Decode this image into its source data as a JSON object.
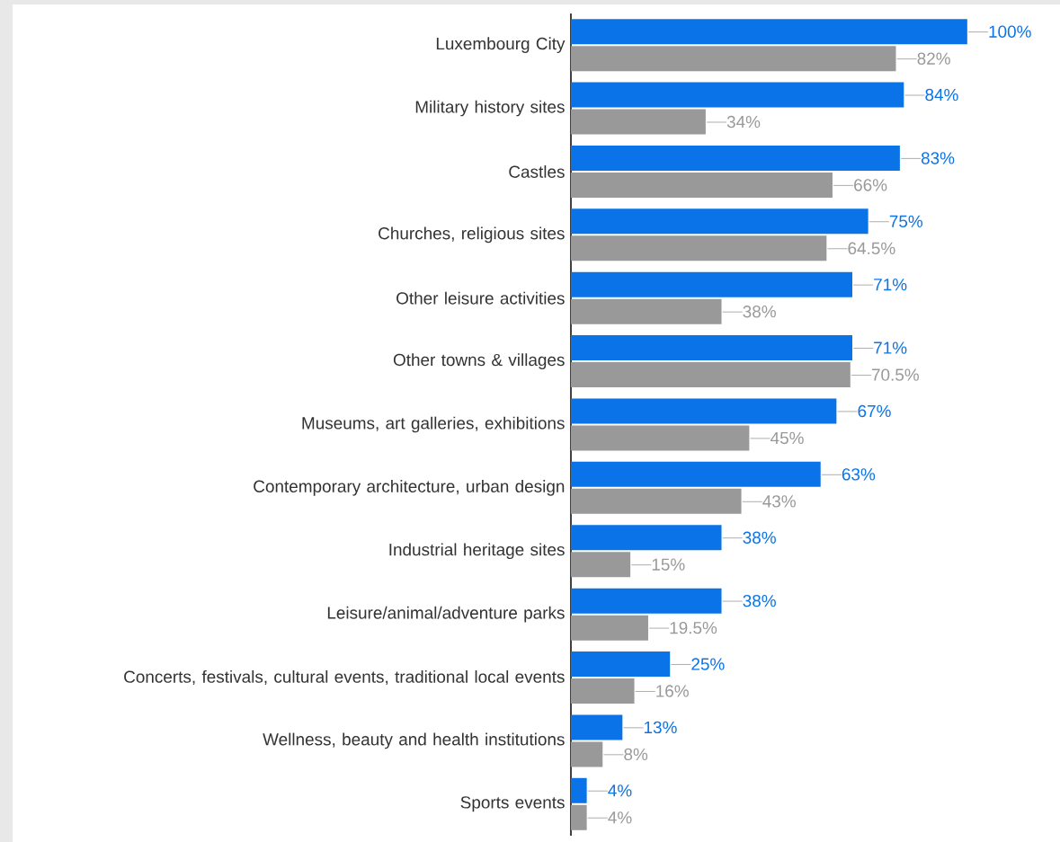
{
  "chart_data": {
    "type": "bar",
    "orientation": "horizontal",
    "categories": [
      "Luxembourg City",
      "Military history sites",
      "Castles",
      "Churches, religious sites",
      "Other leisure activities",
      "Other towns & villages",
      "Museums, art galleries, exhibitions",
      "Contemporary architecture, urban design",
      "Industrial heritage sites",
      "Leisure/animal/adventure parks",
      "Concerts, festivals, cultural events, traditional local events",
      "Wellness, beauty and health institutions",
      "Sports events"
    ],
    "series": [
      {
        "color": "#0a73e8",
        "values": [
          100,
          84,
          83,
          75,
          71,
          71,
          67,
          63,
          38,
          38,
          25,
          13,
          4
        ],
        "value_labels": [
          "100%",
          "84%",
          "83%",
          "75%",
          "71%",
          "71%",
          "67%",
          "63%",
          "38%",
          "38%",
          "25%",
          "13%",
          "4%"
        ]
      },
      {
        "color": "#999999",
        "values": [
          82,
          34,
          66,
          64.5,
          38,
          70.5,
          45,
          43,
          15,
          19.5,
          16,
          8,
          4
        ],
        "value_labels": [
          "82%",
          "34%",
          "66%",
          "64.5%",
          "38%",
          "70.5%",
          "45%",
          "43%",
          "15%",
          "19.5%",
          "16%",
          "8%",
          "4%"
        ]
      }
    ]
  }
}
